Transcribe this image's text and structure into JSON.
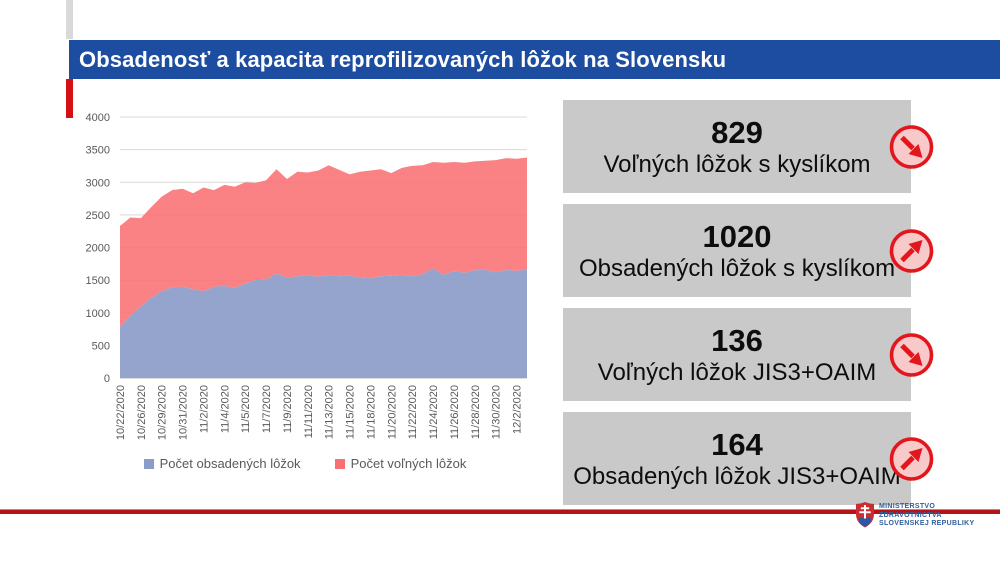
{
  "page": {
    "title": "Obsadenosť a kapacita reprofilizovaných lôžok na Slovensku"
  },
  "colors": {
    "title_bar": "#1C4DA1",
    "accent_red": "#D21016",
    "card_bg": "#C9C9C9",
    "occupied_blue": "#8C9CC8",
    "free_red": "#F97073",
    "icon_ring": "#E3151D",
    "icon_fill": "#F7C9C9",
    "footer_line": "#B51317",
    "logo_text_blue": "#2F5F9E",
    "axis_text": "#595959"
  },
  "chart_data": {
    "type": "area",
    "stacked": true,
    "title": "",
    "xlabel": "",
    "ylabel": "",
    "ylim": [
      0,
      4000
    ],
    "ytick": 500,
    "grid": true,
    "legend_position": "bottom",
    "categories": [
      "10/22/2020",
      "",
      "10/26/2020",
      "",
      "10/29/2020",
      "",
      "10/31/2020",
      "",
      "11/2/2020",
      "",
      "11/4/2020",
      "",
      "11/5/2020",
      "",
      "11/7/2020",
      "",
      "11/9/2020",
      "",
      "11/11/2020",
      "",
      "11/13/2020",
      "",
      "11/15/2020",
      "",
      "11/18/2020",
      "",
      "11/20/2020",
      "",
      "11/22/2020",
      "",
      "11/24/2020",
      "",
      "11/26/2020",
      "",
      "11/28/2020",
      "",
      "11/30/2020",
      "",
      "12/2/2020",
      ""
    ],
    "series": [
      {
        "name": "Počet obsadených lôžok",
        "color": "#8C9CC8",
        "values": [
          780,
          950,
          1100,
          1230,
          1330,
          1390,
          1400,
          1360,
          1330,
          1400,
          1410,
          1380,
          1450,
          1500,
          1510,
          1600,
          1540,
          1560,
          1580,
          1550,
          1580,
          1560,
          1570,
          1540,
          1530,
          1560,
          1570,
          1580,
          1560,
          1590,
          1680,
          1580,
          1640,
          1610,
          1650,
          1660,
          1620,
          1655,
          1640,
          1665
        ]
      },
      {
        "name": "Počet voľných lôžok",
        "color": "#F97073",
        "values": [
          1550,
          1510,
          1350,
          1390,
          1450,
          1490,
          1500,
          1470,
          1590,
          1480,
          1550,
          1550,
          1550,
          1490,
          1520,
          1600,
          1510,
          1600,
          1570,
          1630,
          1680,
          1630,
          1550,
          1620,
          1650,
          1640,
          1570,
          1640,
          1690,
          1670,
          1630,
          1720,
          1670,
          1690,
          1670,
          1670,
          1720,
          1715,
          1720,
          1715
        ]
      }
    ]
  },
  "cards": [
    {
      "value": "829",
      "label": "Voľných lôžok s kyslíkom",
      "trend": "down"
    },
    {
      "value": "1020",
      "label": "Obsadených lôžok s kyslíkom",
      "trend": "up"
    },
    {
      "value": "136",
      "label": "Voľných lôžok JIS3+OAIM",
      "trend": "down"
    },
    {
      "value": "164",
      "label": "Obsadených lôžok JIS3+OAIM",
      "trend": "up"
    }
  ],
  "footer": {
    "ministry_lines": [
      "MINISTERSTVO",
      "ZDRAVOTNÍCTVA",
      "SLOVENSKEJ REPUBLIKY"
    ]
  }
}
